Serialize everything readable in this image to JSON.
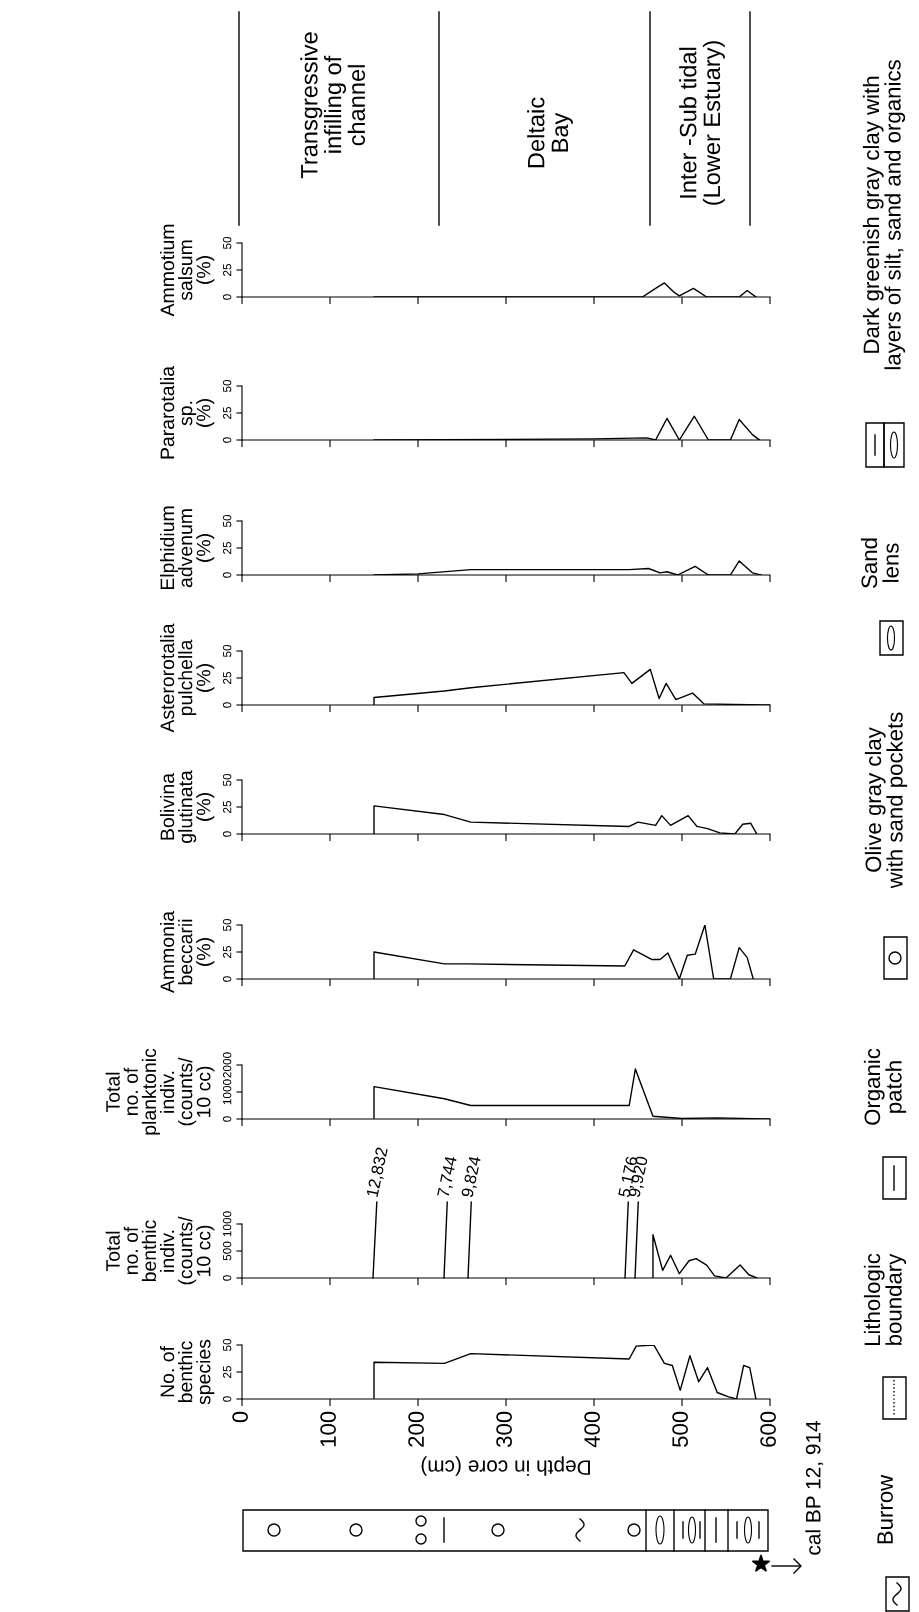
{
  "chart_data": [
    {
      "type": "line",
      "ylabel": "No. of\nbenthic\nspecies",
      "xlabel": "Depth in core (cm)",
      "xlim": [
        0,
        600
      ],
      "ylim": [
        0,
        50
      ],
      "xticks": [
        0,
        100,
        200,
        300,
        400,
        500,
        600
      ],
      "yticks": [
        0,
        25,
        50
      ],
      "series": [
        {
          "color": "#000000",
          "x": [
            150,
            150,
            230,
            260,
            440,
            448,
            468,
            480,
            489,
            498,
            509,
            519,
            529,
            540,
            553,
            562,
            570,
            577,
            584
          ],
          "values": [
            0,
            34,
            33,
            42,
            37,
            49,
            50,
            33,
            31,
            8,
            40,
            16,
            29,
            6,
            2,
            0,
            31,
            29,
            0
          ]
        }
      ]
    },
    {
      "type": "line",
      "ylabel": "Total\nno. of\nbenthic\nindiv.\n(counts/\n10 cc)",
      "xlim": [
        0,
        600
      ],
      "ylim": [
        0,
        1000
      ],
      "xticks": [
        0,
        100,
        200,
        300,
        400,
        500,
        600
      ],
      "yticks": [
        0,
        500,
        1000
      ],
      "tick_labels": "y",
      "annotations": [
        "12,832",
        "7,744",
        "9,824",
        "5,176",
        "9,920"
      ],
      "series": [
        {
          "color": "#000000",
          "x": [
            467,
            467,
            478,
            487,
            497,
            508,
            516,
            528,
            537,
            550,
            566,
            576,
            585
          ],
          "values": [
            0,
            800,
            140,
            420,
            80,
            320,
            360,
            240,
            40,
            0,
            240,
            60,
            0
          ]
        }
      ]
    },
    {
      "type": "line",
      "ylabel": "Total\nno. of\nplanktonic\nindiv.\n(counts/\n10 cc)",
      "xlim": [
        0,
        600
      ],
      "ylim": [
        0,
        2000
      ],
      "xticks": [
        0,
        100,
        200,
        300,
        400,
        500,
        600
      ],
      "yticks": [
        0,
        1000,
        2000
      ],
      "tick_labels": "y",
      "series": [
        {
          "color": "#000000",
          "x": [
            150,
            150,
            230,
            260,
            440,
            447,
            467,
            500,
            540,
            600
          ],
          "values": [
            0,
            1200,
            750,
            500,
            500,
            1850,
            100,
            20,
            40,
            0
          ]
        }
      ]
    },
    {
      "type": "line",
      "ylabel": "Ammonia\nbeccarii\n(%)",
      "xlim": [
        0,
        600
      ],
      "ylim": [
        0,
        50
      ],
      "xticks": [
        0,
        100,
        200,
        300,
        400,
        500,
        600
      ],
      "yticks": [
        0,
        25,
        50
      ],
      "tick_labels": "y",
      "series": [
        {
          "color": "#000000",
          "x": [
            150,
            150,
            230,
            256,
            435,
            445,
            466,
            475,
            484,
            497,
            506,
            515,
            526,
            536,
            555,
            565,
            574,
            581
          ],
          "values": [
            0,
            25,
            14,
            14,
            12,
            27,
            18,
            18,
            24,
            0,
            22,
            23,
            50,
            0,
            0,
            29,
            20,
            0
          ]
        }
      ]
    },
    {
      "type": "line",
      "ylabel": "Bolivina\nglutinata\n(%)",
      "xlim": [
        0,
        600
      ],
      "ylim": [
        0,
        50
      ],
      "xticks": [
        0,
        100,
        200,
        300,
        400,
        500,
        600
      ],
      "yticks": [
        0,
        25,
        50
      ],
      "tick_labels": "y",
      "series": [
        {
          "color": "#000000",
          "x": [
            150,
            150,
            230,
            260,
            440,
            450,
            470,
            477,
            487,
            507,
            517,
            529,
            543,
            560,
            569,
            578,
            585
          ],
          "values": [
            0,
            26,
            18,
            11,
            7,
            11,
            8,
            17,
            8,
            17,
            7,
            5,
            1,
            0,
            9,
            10,
            0
          ]
        }
      ]
    },
    {
      "type": "line",
      "ylabel": "Asterorotalia\npulchella\n(%)",
      "xlim": [
        0,
        600
      ],
      "ylim": [
        0,
        50
      ],
      "xticks": [
        0,
        100,
        200,
        300,
        400,
        500,
        600
      ],
      "yticks": [
        0,
        25,
        50
      ],
      "tick_labels": "y",
      "series": [
        {
          "color": "#000000",
          "x": [
            150,
            150,
            230,
            260,
            434,
            443,
            464,
            474,
            482,
            493,
            512,
            525,
            600
          ],
          "values": [
            0,
            7,
            13,
            16,
            30,
            20,
            33,
            6,
            20,
            5,
            11,
            1,
            0
          ]
        }
      ]
    },
    {
      "type": "line",
      "ylabel": "Elphidium\nadvenum\n(%)",
      "xlim": [
        0,
        600
      ],
      "ylim": [
        0,
        50
      ],
      "xticks": [
        0,
        100,
        200,
        300,
        400,
        500,
        600
      ],
      "yticks": [
        0,
        25,
        50
      ],
      "tick_labels": "y",
      "series": [
        {
          "color": "#000000",
          "x": [
            150,
            200,
            260,
            440,
            462,
            475,
            483,
            495,
            515,
            530,
            555,
            565,
            580,
            590
          ],
          "values": [
            0,
            1,
            5,
            5,
            6,
            2,
            3,
            0,
            8,
            0,
            0,
            13,
            2,
            0
          ]
        }
      ]
    },
    {
      "type": "line",
      "ylabel": "Pararotalia\nsp.\n(%)",
      "xlim": [
        0,
        600
      ],
      "ylim": [
        0,
        50
      ],
      "xticks": [
        0,
        100,
        200,
        300,
        400,
        500,
        600
      ],
      "yticks": [
        0,
        25,
        50
      ],
      "tick_labels": "y",
      "series": [
        {
          "color": "#000000",
          "x": [
            150,
            400,
            460,
            470,
            483,
            497,
            514,
            530,
            555,
            565,
            580,
            588
          ],
          "values": [
            0,
            1,
            2,
            0,
            20,
            0,
            22,
            0,
            0,
            19,
            5,
            0
          ]
        }
      ]
    },
    {
      "type": "line",
      "ylabel": "Ammotium\nsalsum\n(%)",
      "xlim": [
        0,
        600
      ],
      "ylim": [
        0,
        50
      ],
      "xticks": [
        0,
        100,
        200,
        300,
        400,
        500,
        600
      ],
      "yticks": [
        0,
        25,
        50
      ],
      "tick_labels": "y",
      "series": [
        {
          "color": "#000000",
          "x": [
            150,
            455,
            470,
            480,
            490,
            497,
            513,
            528,
            565,
            574,
            584
          ],
          "values": [
            0,
            0,
            8,
            13,
            5,
            1,
            8,
            0,
            0,
            6,
            0
          ]
        }
      ]
    },
    {
      "type": "other",
      "annotations": [
        "Transgressive\ninfilling of\nchannel",
        "Deltaic\nBay",
        "Inter -Sub tidal\n(Lower Estuary)"
      ]
    },
    {
      "type": "other",
      "annotations": [
        "Burrow",
        "Lithologic\nboundary",
        "Organic\npatch",
        "Olive gray clay\nwith sand pockets",
        "Sand\nlens",
        "Dark greenish gray clay with\nlayers of silt, sand and organics",
        "cal BP 12, 914"
      ]
    }
  ]
}
